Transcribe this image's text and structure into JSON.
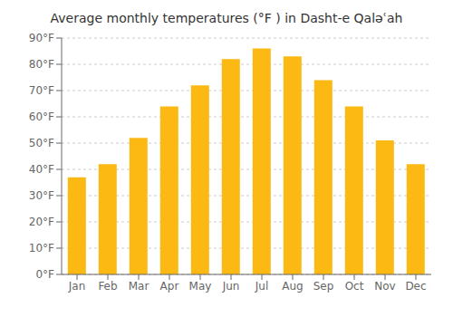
{
  "chart_data": {
    "type": "bar",
    "title": "Average monthly temperatures (°F ) in Dasht-e Qaləʿah",
    "categories": [
      "Jan",
      "Feb",
      "Mar",
      "Apr",
      "May",
      "Jun",
      "Jul",
      "Aug",
      "Sep",
      "Oct",
      "Nov",
      "Dec"
    ],
    "values": [
      37,
      42,
      52,
      64,
      72,
      82,
      86,
      83,
      74,
      64,
      51,
      42
    ],
    "color": "#FDB913",
    "ylim": [
      0,
      90
    ],
    "yticks": [
      {
        "value": 0,
        "label": "0°F"
      },
      {
        "value": 10,
        "label": "10°F"
      },
      {
        "value": 20,
        "label": "20°F"
      },
      {
        "value": 30,
        "label": "30°F"
      },
      {
        "value": 40,
        "label": "40°F"
      },
      {
        "value": 50,
        "label": "50°F"
      },
      {
        "value": 60,
        "label": "60°F"
      },
      {
        "value": 70,
        "label": "70°F"
      },
      {
        "value": 80,
        "label": "80°F"
      },
      {
        "value": 90,
        "label": "90°F"
      }
    ],
    "grid": true
  }
}
